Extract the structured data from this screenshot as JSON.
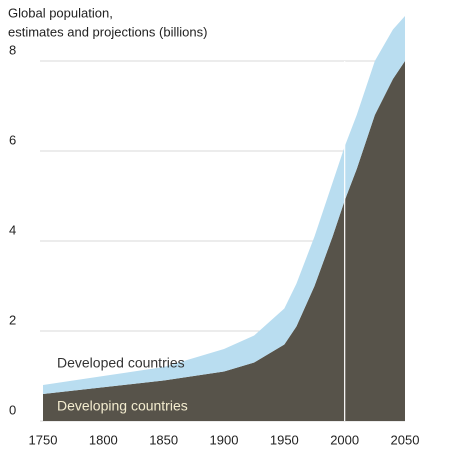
{
  "chart_data": {
    "type": "stacked_area",
    "title": "Global population,",
    "subtitle": "estimates and projections (billions)",
    "x": [
      1750,
      1800,
      1850,
      1900,
      1925,
      1950,
      1960,
      1975,
      1990,
      2000,
      2010,
      2025,
      2040,
      2050
    ],
    "series": [
      {
        "name": "Developing countries",
        "color": "#57534a",
        "values": [
          0.6,
          0.75,
          0.9,
          1.1,
          1.3,
          1.7,
          2.1,
          3.0,
          4.1,
          4.9,
          5.6,
          6.8,
          7.6,
          8.0
        ]
      },
      {
        "name": "Developed countries",
        "color": "#b9ddf0",
        "values": [
          0.2,
          0.25,
          0.3,
          0.5,
          0.6,
          0.8,
          0.95,
          1.1,
          1.2,
          1.2,
          1.2,
          1.2,
          1.1,
          1.0
        ]
      }
    ],
    "xlim": [
      1750,
      2050
    ],
    "xticks": [
      1750,
      1800,
      1850,
      1900,
      1950,
      2000,
      2050
    ],
    "ylim": [
      0,
      8
    ],
    "yticks": [
      0,
      2,
      4,
      6,
      8
    ],
    "grid": true,
    "divider_x": 2000
  }
}
